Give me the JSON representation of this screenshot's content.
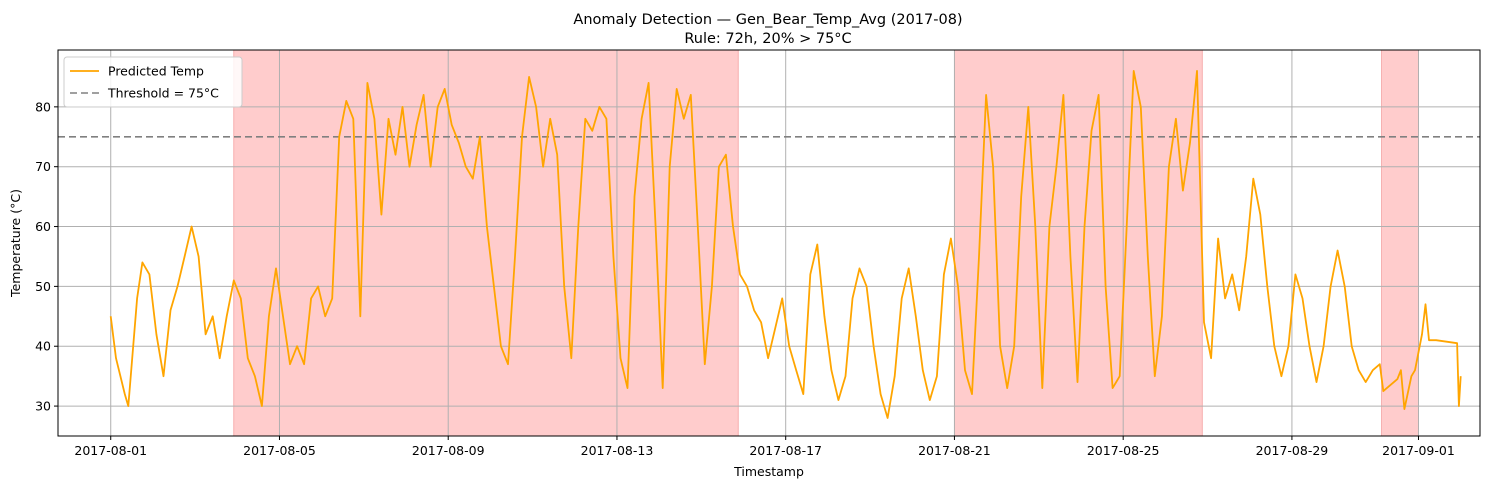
{
  "chart_data": {
    "type": "line",
    "title": "Anomaly Detection — Gen_Bear_Temp_Avg (2017-08)",
    "subtitle": "Rule: 72h, 20% > 75°C",
    "xlabel": "Timestamp",
    "ylabel": "Temperature (°C)",
    "xlim": [
      "2017-07-30T18:00",
      "2017-09-02T11:00"
    ],
    "ylim": [
      25,
      89.5
    ],
    "x_ticks": [
      "2017-08-01",
      "2017-08-05",
      "2017-08-09",
      "2017-08-13",
      "2017-08-17",
      "2017-08-21",
      "2017-08-25",
      "2017-08-29",
      "2017-09-01"
    ],
    "y_ticks": [
      30,
      40,
      50,
      60,
      70,
      80
    ],
    "grid": true,
    "legend_position": "upper-left",
    "threshold": {
      "name": "Threshold = 75°C",
      "value": 75,
      "color": "#808080",
      "style": "dashed"
    },
    "anomaly_color": "#ffcccc",
    "anomaly_periods": [
      {
        "start": "2017-08-03T22:00",
        "end": "2017-08-15T21:00"
      },
      {
        "start": "2017-08-21T00:00",
        "end": "2017-08-26T21:00"
      },
      {
        "start": "2017-08-31T03:00",
        "end": "2017-09-01T00:00"
      }
    ],
    "series": [
      {
        "name": "Predicted Temp",
        "color": "#ffa500",
        "points": [
          [
            "2017-08-01T00:00",
            45
          ],
          [
            "2017-08-01T03:00",
            38
          ],
          [
            "2017-08-01T08:00",
            32
          ],
          [
            "2017-08-01T10:00",
            30
          ],
          [
            "2017-08-01T15:00",
            48
          ],
          [
            "2017-08-01T18:00",
            54
          ],
          [
            "2017-08-01T22:00",
            52
          ],
          [
            "2017-08-02T02:00",
            42
          ],
          [
            "2017-08-02T06:00",
            35
          ],
          [
            "2017-08-02T10:00",
            46
          ],
          [
            "2017-08-02T14:00",
            50
          ],
          [
            "2017-08-02T18:00",
            55
          ],
          [
            "2017-08-02T22:00",
            60
          ],
          [
            "2017-08-03T02:00",
            55
          ],
          [
            "2017-08-03T06:00",
            42
          ],
          [
            "2017-08-03T10:00",
            45
          ],
          [
            "2017-08-03T14:00",
            38
          ],
          [
            "2017-08-03T18:00",
            45
          ],
          [
            "2017-08-03T22:00",
            51
          ],
          [
            "2017-08-04T02:00",
            48
          ],
          [
            "2017-08-04T06:00",
            38
          ],
          [
            "2017-08-04T10:00",
            35
          ],
          [
            "2017-08-04T14:00",
            30
          ],
          [
            "2017-08-04T18:00",
            45
          ],
          [
            "2017-08-04T22:00",
            53
          ],
          [
            "2017-08-05T02:00",
            45
          ],
          [
            "2017-08-05T06:00",
            37
          ],
          [
            "2017-08-05T10:00",
            40
          ],
          [
            "2017-08-05T14:00",
            37
          ],
          [
            "2017-08-05T18:00",
            48
          ],
          [
            "2017-08-05T22:00",
            50
          ],
          [
            "2017-08-06T02:00",
            45
          ],
          [
            "2017-08-06T06:00",
            48
          ],
          [
            "2017-08-06T10:00",
            75
          ],
          [
            "2017-08-06T14:00",
            81
          ],
          [
            "2017-08-06T18:00",
            78
          ],
          [
            "2017-08-06T22:00",
            45
          ],
          [
            "2017-08-07T02:00",
            84
          ],
          [
            "2017-08-07T06:00",
            78
          ],
          [
            "2017-08-07T10:00",
            62
          ],
          [
            "2017-08-07T14:00",
            78
          ],
          [
            "2017-08-07T18:00",
            72
          ],
          [
            "2017-08-07T22:00",
            80
          ],
          [
            "2017-08-08T02:00",
            70
          ],
          [
            "2017-08-08T06:00",
            77
          ],
          [
            "2017-08-08T10:00",
            82
          ],
          [
            "2017-08-08T14:00",
            70
          ],
          [
            "2017-08-08T18:00",
            80
          ],
          [
            "2017-08-08T22:00",
            83
          ],
          [
            "2017-08-09T02:00",
            77
          ],
          [
            "2017-08-09T06:00",
            74
          ],
          [
            "2017-08-09T10:00",
            70
          ],
          [
            "2017-08-09T14:00",
            68
          ],
          [
            "2017-08-09T18:00",
            75
          ],
          [
            "2017-08-09T22:00",
            60
          ],
          [
            "2017-08-10T02:00",
            50
          ],
          [
            "2017-08-10T06:00",
            40
          ],
          [
            "2017-08-10T10:00",
            37
          ],
          [
            "2017-08-10T14:00",
            55
          ],
          [
            "2017-08-10T18:00",
            75
          ],
          [
            "2017-08-10T22:00",
            85
          ],
          [
            "2017-08-11T02:00",
            80
          ],
          [
            "2017-08-11T06:00",
            70
          ],
          [
            "2017-08-11T10:00",
            78
          ],
          [
            "2017-08-11T14:00",
            72
          ],
          [
            "2017-08-11T18:00",
            50
          ],
          [
            "2017-08-11T22:00",
            38
          ],
          [
            "2017-08-12T02:00",
            60
          ],
          [
            "2017-08-12T06:00",
            78
          ],
          [
            "2017-08-12T10:00",
            76
          ],
          [
            "2017-08-12T14:00",
            80
          ],
          [
            "2017-08-12T18:00",
            78
          ],
          [
            "2017-08-12T22:00",
            55
          ],
          [
            "2017-08-13T02:00",
            38
          ],
          [
            "2017-08-13T06:00",
            33
          ],
          [
            "2017-08-13T10:00",
            65
          ],
          [
            "2017-08-13T14:00",
            78
          ],
          [
            "2017-08-13T18:00",
            84
          ],
          [
            "2017-08-13T22:00",
            60
          ],
          [
            "2017-08-14T02:00",
            33
          ],
          [
            "2017-08-14T06:00",
            70
          ],
          [
            "2017-08-14T10:00",
            83
          ],
          [
            "2017-08-14T14:00",
            78
          ],
          [
            "2017-08-14T18:00",
            82
          ],
          [
            "2017-08-14T22:00",
            60
          ],
          [
            "2017-08-15T02:00",
            37
          ],
          [
            "2017-08-15T06:00",
            50
          ],
          [
            "2017-08-15T10:00",
            70
          ],
          [
            "2017-08-15T14:00",
            72
          ],
          [
            "2017-08-15T18:00",
            60
          ],
          [
            "2017-08-15T22:00",
            52
          ],
          [
            "2017-08-16T02:00",
            50
          ],
          [
            "2017-08-16T06:00",
            46
          ],
          [
            "2017-08-16T10:00",
            44
          ],
          [
            "2017-08-16T14:00",
            38
          ],
          [
            "2017-08-16T18:00",
            43
          ],
          [
            "2017-08-16T22:00",
            48
          ],
          [
            "2017-08-17T02:00",
            40
          ],
          [
            "2017-08-17T06:00",
            36
          ],
          [
            "2017-08-17T10:00",
            32
          ],
          [
            "2017-08-17T14:00",
            52
          ],
          [
            "2017-08-17T18:00",
            57
          ],
          [
            "2017-08-17T22:00",
            45
          ],
          [
            "2017-08-18T02:00",
            36
          ],
          [
            "2017-08-18T06:00",
            31
          ],
          [
            "2017-08-18T10:00",
            35
          ],
          [
            "2017-08-18T14:00",
            48
          ],
          [
            "2017-08-18T18:00",
            53
          ],
          [
            "2017-08-18T22:00",
            50
          ],
          [
            "2017-08-19T02:00",
            40
          ],
          [
            "2017-08-19T06:00",
            32
          ],
          [
            "2017-08-19T10:00",
            28
          ],
          [
            "2017-08-19T14:00",
            35
          ],
          [
            "2017-08-19T18:00",
            48
          ],
          [
            "2017-08-19T22:00",
            53
          ],
          [
            "2017-08-20T02:00",
            45
          ],
          [
            "2017-08-20T06:00",
            36
          ],
          [
            "2017-08-20T10:00",
            31
          ],
          [
            "2017-08-20T14:00",
            35
          ],
          [
            "2017-08-20T18:00",
            52
          ],
          [
            "2017-08-20T22:00",
            58
          ],
          [
            "2017-08-21T02:00",
            50
          ],
          [
            "2017-08-21T06:00",
            36
          ],
          [
            "2017-08-21T10:00",
            32
          ],
          [
            "2017-08-21T14:00",
            55
          ],
          [
            "2017-08-21T18:00",
            82
          ],
          [
            "2017-08-21T22:00",
            70
          ],
          [
            "2017-08-22T02:00",
            40
          ],
          [
            "2017-08-22T06:00",
            33
          ],
          [
            "2017-08-22T10:00",
            40
          ],
          [
            "2017-08-22T14:00",
            65
          ],
          [
            "2017-08-22T18:00",
            80
          ],
          [
            "2017-08-22T22:00",
            60
          ],
          [
            "2017-08-23T02:00",
            33
          ],
          [
            "2017-08-23T06:00",
            60
          ],
          [
            "2017-08-23T10:00",
            70
          ],
          [
            "2017-08-23T14:00",
            82
          ],
          [
            "2017-08-23T18:00",
            55
          ],
          [
            "2017-08-23T22:00",
            34
          ],
          [
            "2017-08-24T02:00",
            60
          ],
          [
            "2017-08-24T06:00",
            76
          ],
          [
            "2017-08-24T10:00",
            82
          ],
          [
            "2017-08-24T14:00",
            50
          ],
          [
            "2017-08-24T18:00",
            33
          ],
          [
            "2017-08-24T22:00",
            35
          ],
          [
            "2017-08-25T02:00",
            60
          ],
          [
            "2017-08-25T06:00",
            86
          ],
          [
            "2017-08-25T10:00",
            80
          ],
          [
            "2017-08-25T14:00",
            55
          ],
          [
            "2017-08-25T18:00",
            35
          ],
          [
            "2017-08-25T22:00",
            45
          ],
          [
            "2017-08-26T02:00",
            70
          ],
          [
            "2017-08-26T06:00",
            78
          ],
          [
            "2017-08-26T10:00",
            66
          ],
          [
            "2017-08-26T14:00",
            74
          ],
          [
            "2017-08-26T18:00",
            86
          ],
          [
            "2017-08-26T22:00",
            44
          ],
          [
            "2017-08-27T02:00",
            38
          ],
          [
            "2017-08-27T06:00",
            58
          ],
          [
            "2017-08-27T10:00",
            48
          ],
          [
            "2017-08-27T14:00",
            52
          ],
          [
            "2017-08-27T18:00",
            46
          ],
          [
            "2017-08-27T22:00",
            55
          ],
          [
            "2017-08-28T02:00",
            68
          ],
          [
            "2017-08-28T06:00",
            62
          ],
          [
            "2017-08-28T10:00",
            50
          ],
          [
            "2017-08-28T14:00",
            40
          ],
          [
            "2017-08-28T18:00",
            35
          ],
          [
            "2017-08-28T22:00",
            40
          ],
          [
            "2017-08-29T02:00",
            52
          ],
          [
            "2017-08-29T06:00",
            48
          ],
          [
            "2017-08-29T10:00",
            40
          ],
          [
            "2017-08-29T14:00",
            34
          ],
          [
            "2017-08-29T18:00",
            40
          ],
          [
            "2017-08-29T22:00",
            50
          ],
          [
            "2017-08-30T02:00",
            56
          ],
          [
            "2017-08-30T06:00",
            50
          ],
          [
            "2017-08-30T10:00",
            40
          ],
          [
            "2017-08-30T14:00",
            36
          ],
          [
            "2017-08-30T18:00",
            34
          ],
          [
            "2017-08-30T22:00",
            36
          ],
          [
            "2017-08-31T02:00",
            37
          ],
          [
            "2017-08-31T04:00",
            32.5
          ],
          [
            "2017-08-31T12:00",
            34.5
          ],
          [
            "2017-08-31T14:00",
            36
          ],
          [
            "2017-08-31T16:00",
            29.5
          ],
          [
            "2017-08-31T20:00",
            35
          ],
          [
            "2017-08-31T22:00",
            36
          ],
          [
            "2017-09-01T02:00",
            42
          ],
          [
            "2017-09-01T04:00",
            47
          ],
          [
            "2017-09-01T06:00",
            41
          ],
          [
            "2017-09-01T10:00",
            41
          ],
          [
            "2017-09-01T22:00",
            40.5
          ],
          [
            "2017-09-01T23:00",
            30
          ],
          [
            "2017-09-02T00:00",
            35
          ]
        ]
      }
    ]
  }
}
